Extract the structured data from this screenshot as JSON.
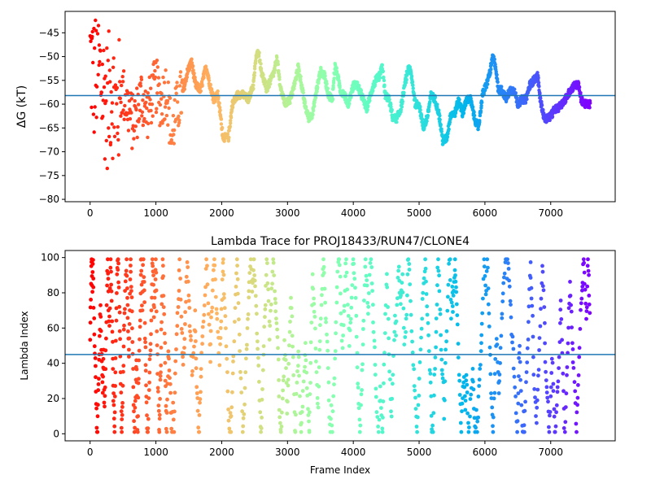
{
  "chart_data": [
    {
      "type": "scatter",
      "title": "",
      "xlabel": "",
      "ylabel": "ΔG (kT)",
      "xlim": [
        -380,
        7980
      ],
      "ylim": [
        -80.5,
        -40.5
      ],
      "xticks": [
        0,
        1000,
        2000,
        3000,
        4000,
        5000,
        6000,
        7000
      ],
      "yticks": [
        -80,
        -75,
        -70,
        -65,
        -60,
        -55,
        -50,
        -45
      ],
      "hline": -58.2,
      "hline_color": "#1f77b4",
      "colormap": "rainbow (frame 0 = red → frame 7600 = violet)",
      "trace_keypoints": [
        [
          0,
          -50
        ],
        [
          60,
          -55
        ],
        [
          120,
          -52
        ],
        [
          180,
          -56
        ],
        [
          260,
          -60
        ],
        [
          320,
          -56
        ],
        [
          400,
          -62
        ],
        [
          480,
          -57
        ],
        [
          560,
          -60
        ],
        [
          640,
          -64
        ],
        [
          700,
          -62
        ],
        [
          780,
          -58
        ],
        [
          860,
          -62
        ],
        [
          940,
          -58
        ],
        [
          1000,
          -56
        ],
        [
          1080,
          -60
        ],
        [
          1160,
          -56
        ],
        [
          1200,
          -62
        ],
        [
          1240,
          -68
        ],
        [
          1280,
          -63
        ],
        [
          1340,
          -60
        ],
        [
          1420,
          -57
        ],
        [
          1480,
          -53
        ],
        [
          1540,
          -51
        ],
        [
          1600,
          -56
        ],
        [
          1680,
          -57
        ],
        [
          1760,
          -52
        ],
        [
          1820,
          -56
        ],
        [
          1880,
          -59
        ],
        [
          1940,
          -58
        ],
        [
          2020,
          -67
        ],
        [
          2100,
          -67
        ],
        [
          2160,
          -60
        ],
        [
          2240,
          -58
        ],
        [
          2320,
          -58
        ],
        [
          2400,
          -59
        ],
        [
          2480,
          -56
        ],
        [
          2520,
          -50
        ],
        [
          2560,
          -49
        ],
        [
          2600,
          -53
        ],
        [
          2680,
          -57
        ],
        [
          2740,
          -55
        ],
        [
          2800,
          -53
        ],
        [
          2840,
          -50
        ],
        [
          2880,
          -56
        ],
        [
          2960,
          -60
        ],
        [
          3040,
          -59
        ],
        [
          3120,
          -55
        ],
        [
          3160,
          -52
        ],
        [
          3200,
          -55
        ],
        [
          3260,
          -60
        ],
        [
          3320,
          -63
        ],
        [
          3380,
          -62
        ],
        [
          3440,
          -57
        ],
        [
          3500,
          -53
        ],
        [
          3560,
          -54
        ],
        [
          3620,
          -58
        ],
        [
          3680,
          -59
        ],
        [
          3720,
          -52
        ],
        [
          3760,
          -54
        ],
        [
          3800,
          -57
        ],
        [
          3860,
          -58
        ],
        [
          3920,
          -60
        ],
        [
          4000,
          -56
        ],
        [
          4060,
          -56
        ],
        [
          4120,
          -58
        ],
        [
          4200,
          -61
        ],
        [
          4280,
          -57
        ],
        [
          4340,
          -55
        ],
        [
          4400,
          -54
        ],
        [
          4440,
          -52
        ],
        [
          4480,
          -58
        ],
        [
          4540,
          -59
        ],
        [
          4600,
          -63
        ],
        [
          4660,
          -63
        ],
        [
          4720,
          -61
        ],
        [
          4780,
          -56
        ],
        [
          4840,
          -52
        ],
        [
          4880,
          -54
        ],
        [
          4940,
          -60
        ],
        [
          5000,
          -60
        ],
        [
          5060,
          -65
        ],
        [
          5120,
          -63
        ],
        [
          5180,
          -58
        ],
        [
          5240,
          -59
        ],
        [
          5300,
          -62
        ],
        [
          5360,
          -68
        ],
        [
          5420,
          -67
        ],
        [
          5480,
          -62
        ],
        [
          5540,
          -62
        ],
        [
          5600,
          -59
        ],
        [
          5660,
          -62
        ],
        [
          5720,
          -59
        ],
        [
          5780,
          -59
        ],
        [
          5840,
          -63
        ],
        [
          5900,
          -65
        ],
        [
          5960,
          -58
        ],
        [
          6020,
          -56
        ],
        [
          6080,
          -53
        ],
        [
          6120,
          -50
        ],
        [
          6160,
          -52
        ],
        [
          6200,
          -57
        ],
        [
          6260,
          -57
        ],
        [
          6320,
          -59
        ],
        [
          6380,
          -57
        ],
        [
          6440,
          -57
        ],
        [
          6500,
          -60
        ],
        [
          6560,
          -59
        ],
        [
          6620,
          -59
        ],
        [
          6680,
          -56
        ],
        [
          6740,
          -55
        ],
        [
          6800,
          -54
        ],
        [
          6840,
          -59
        ],
        [
          6900,
          -63
        ],
        [
          6960,
          -63
        ],
        [
          7020,
          -62
        ],
        [
          7060,
          -61
        ],
        [
          7100,
          -61
        ],
        [
          7160,
          -60
        ],
        [
          7220,
          -59
        ],
        [
          7300,
          -57
        ],
        [
          7360,
          -56
        ],
        [
          7420,
          -56
        ],
        [
          7460,
          -59
        ],
        [
          7520,
          -60
        ],
        [
          7580,
          -60
        ]
      ]
    },
    {
      "type": "scatter",
      "title": "Lambda Trace for PROJ18433/RUN47/CLONE4",
      "xlabel": "Frame Index",
      "ylabel": "Lambda Index",
      "xlim": [
        -380,
        7980
      ],
      "ylim": [
        -4,
        104
      ],
      "xticks": [
        0,
        1000,
        2000,
        3000,
        4000,
        5000,
        6000,
        7000
      ],
      "yticks": [
        0,
        20,
        40,
        60,
        80,
        100
      ],
      "hline": 45,
      "hline_color": "#1f77b4",
      "colormap": "rainbow (frame 0 = red → frame 7600 = violet)",
      "x_range": [
        0,
        7600
      ],
      "lambda_range": [
        0,
        99
      ]
    }
  ]
}
